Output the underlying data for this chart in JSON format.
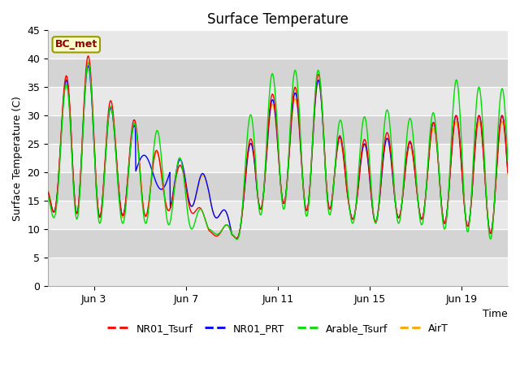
{
  "title": "Surface Temperature",
  "xlabel": "Time",
  "ylabel": "Surface Temperature (C)",
  "annotation": "BC_met",
  "ylim": [
    0,
    45
  ],
  "yticks": [
    0,
    5,
    10,
    15,
    20,
    25,
    30,
    35,
    40,
    45
  ],
  "xtick_labels": [
    "Jun 3",
    "Jun 7",
    "Jun 11",
    "Jun 15",
    "Jun 19"
  ],
  "xtick_positions": [
    2,
    6,
    10,
    14,
    18
  ],
  "n_days": 20,
  "colors": {
    "NR01_Tsurf": "#FF0000",
    "NR01_PRT": "#0000FF",
    "Arable_Tsurf": "#00DD00",
    "AirT": "#FFA500"
  },
  "bg_color": "#DCDCDC",
  "band_colors": [
    "#E8E8E8",
    "#D4D4D4"
  ],
  "title_fontsize": 12,
  "axis_fontsize": 9,
  "tick_fontsize": 9,
  "legend_fontsize": 9
}
